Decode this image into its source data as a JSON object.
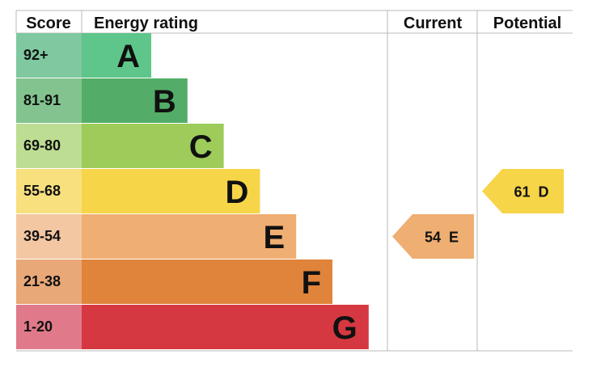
{
  "chart_data": {
    "type": "bar",
    "headers": {
      "score": "Score",
      "rating": "Energy rating",
      "current": "Current",
      "potential": "Potential"
    },
    "bands": [
      {
        "range": "92+",
        "letter": "A",
        "color": "#5ec68a",
        "score_color": "#7fc8a0",
        "min": 92
      },
      {
        "range": "81-91",
        "letter": "B",
        "color": "#53ad68",
        "score_color": "#82c38f",
        "min": 81
      },
      {
        "range": "69-80",
        "letter": "C",
        "color": "#9dcc5a",
        "score_color": "#bcdd92",
        "min": 69
      },
      {
        "range": "55-68",
        "letter": "D",
        "color": "#f6d548",
        "score_color": "#f8e07e",
        "min": 55
      },
      {
        "range": "39-54",
        "letter": "E",
        "color": "#efae72",
        "score_color": "#f3c7a2",
        "min": 39
      },
      {
        "range": "21-38",
        "letter": "F",
        "color": "#e0833b",
        "score_color": "#e9a878",
        "min": 21
      },
      {
        "range": "1-20",
        "letter": "G",
        "color": "#d63841",
        "score_color": "#e07a8a",
        "min": 1
      }
    ],
    "current": {
      "value": 54,
      "letter": "E",
      "label": "54  E",
      "color": "#efae72"
    },
    "potential": {
      "value": 61,
      "letter": "D",
      "label": "61  D",
      "color": "#f6d548"
    }
  }
}
